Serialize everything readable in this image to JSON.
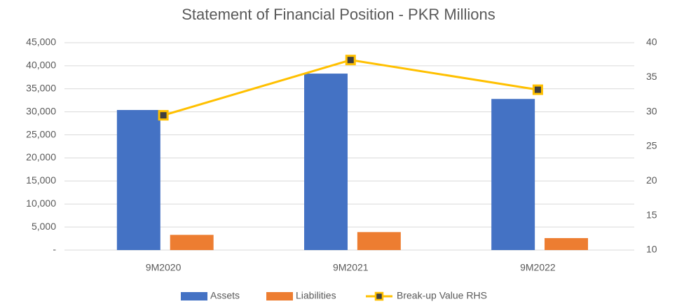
{
  "chart_data": {
    "type": "bar",
    "title": "Statement of Financial Position - PKR Millions",
    "categories": [
      "9M2020",
      "9M2021",
      "9M2022"
    ],
    "series": [
      {
        "name": "Assets",
        "color": "#4472c4",
        "values": [
          30400,
          38300,
          32800
        ]
      },
      {
        "name": "Liabilities",
        "color": "#ed7d31",
        "values": [
          3300,
          3900,
          2600
        ]
      },
      {
        "name": "Break-up Value RHS",
        "color": "#ffc000",
        "type": "line",
        "axis": "y2",
        "values": [
          29.5,
          37.5,
          33.2
        ]
      }
    ],
    "ylim": [
      0,
      45000
    ],
    "yticks": [
      {
        "value": 0,
        "label": "-"
      },
      {
        "value": 5000,
        "label": "5,000"
      },
      {
        "value": 10000,
        "label": "10,000"
      },
      {
        "value": 15000,
        "label": "15,000"
      },
      {
        "value": 20000,
        "label": "20,000"
      },
      {
        "value": 25000,
        "label": "25,000"
      },
      {
        "value": 30000,
        "label": "30,000"
      },
      {
        "value": 35000,
        "label": "35,000"
      },
      {
        "value": 40000,
        "label": "40,000"
      },
      {
        "value": 45000,
        "label": "45,000"
      }
    ],
    "y2lim": [
      10,
      40
    ],
    "y2ticks": [
      10,
      15,
      20,
      25,
      30,
      35,
      40
    ],
    "grid": true,
    "legend": "bottom"
  }
}
